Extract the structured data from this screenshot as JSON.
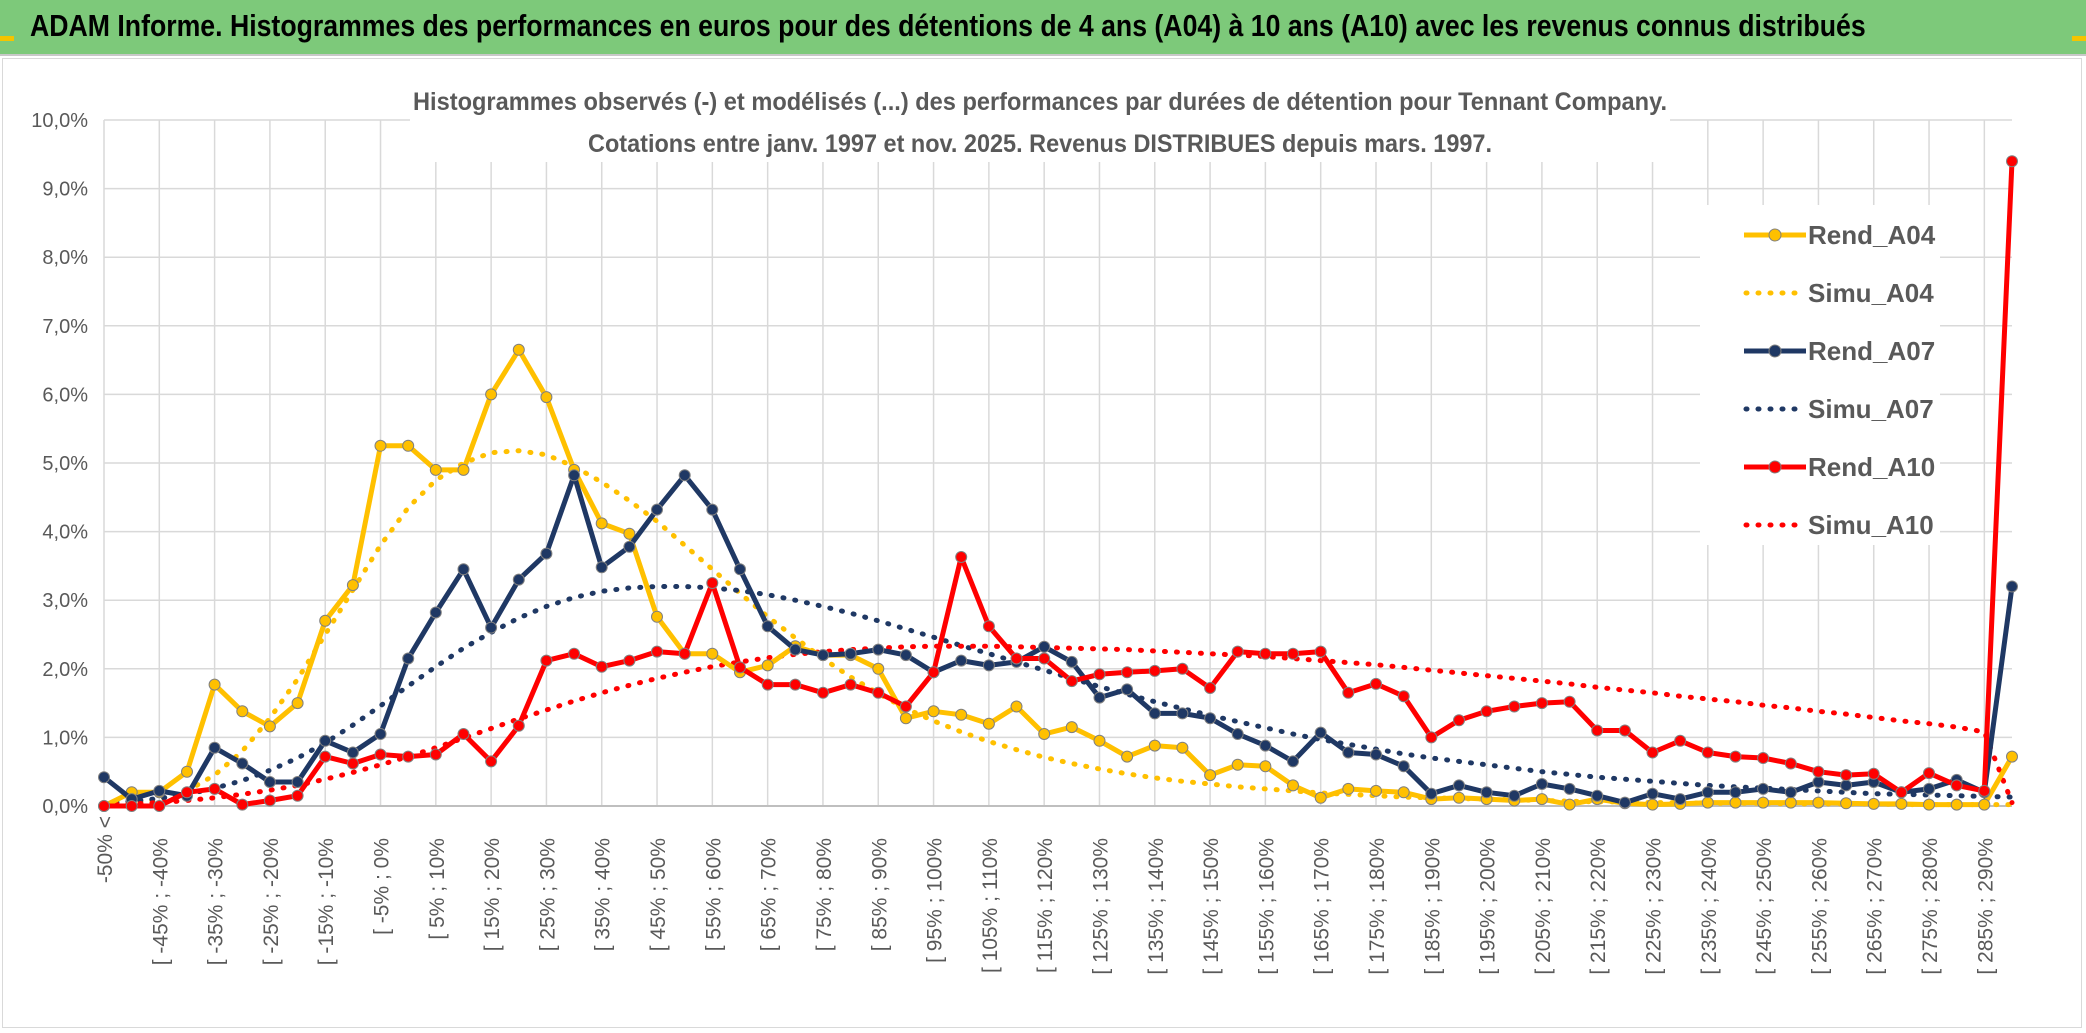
{
  "header": {
    "title": "ADAM Informe. Histogrammes des performances en euros pour des détentions de 4 ans (A04) à 10 ans (A10) avec les revenus connus distribués"
  },
  "colors": {
    "banner": "#7dc97a",
    "A04": "#ffc000",
    "A07": "#1f3864",
    "A10": "#ff0000",
    "grid": "#d9d9d9"
  },
  "chart_data": {
    "type": "line",
    "title": "Histogrammes observés (-) et modélisés (...) des performances par durées de détention pour Tennant Company.",
    "subtitle": "Cotations entre janv. 1997 et nov. 2025. Revenus DISTRIBUES depuis mars. 1997.",
    "ylim": [
      0,
      10
    ],
    "y_ticks": [
      "0,0%",
      "1,0%",
      "2,0%",
      "3,0%",
      "4,0%",
      "5,0%",
      "6,0%",
      "7,0%",
      "8,0%",
      "9,0%",
      "10,0%"
    ],
    "grid": true,
    "legend_position": "right",
    "x_tick_labels": [
      "-50% <",
      "[ -45% ; -40%",
      "[ -35% ; -30%",
      "[ -25% ; -20%",
      "[ -15% ; -10%",
      "[ -5% ; 0%",
      "[ 5% ; 10%",
      "[ 15% ; 20%",
      "[ 25% ; 30%",
      "[ 35% ; 40%",
      "[ 45% ; 50%",
      "[ 55% ; 60%",
      "[ 65% ; 70%",
      "[ 75% ; 80%",
      "[ 85% ; 90%",
      "[ 95% ; 100%",
      "[ 105% ; 110%",
      "[ 115% ; 120%",
      "[ 125% ; 130%",
      "[ 135% ; 140%",
      "[ 145% ; 150%",
      "[ 155% ; 160%",
      "[ 165% ; 170%",
      "[ 175% ; 180%",
      "[ 185% ; 190%",
      "[ 195% ; 200%",
      "[ 205% ; 210%",
      "[ 215% ; 220%",
      "[ 225% ; 230%",
      "[ 235% ; 240%",
      "[ 245% ; 250%",
      "[ 255% ; 260%",
      "[ 265% ; 270%",
      "[ 275% ; 280%",
      "[ 285% ; 290%"
    ],
    "x_count": 70,
    "series": [
      {
        "name": "Rend_A04",
        "style": "solid",
        "color": "#ffc000",
        "values": [
          0.0,
          0.2,
          0.2,
          0.5,
          1.77,
          1.38,
          1.16,
          1.5,
          2.7,
          3.22,
          5.25,
          5.25,
          4.9,
          4.9,
          6.0,
          6.65,
          5.96,
          4.9,
          4.12,
          3.97,
          2.76,
          2.22,
          2.22,
          1.95,
          2.05,
          2.33,
          2.2,
          2.2,
          2.0,
          1.28,
          1.38,
          1.33,
          1.2,
          1.45,
          1.05,
          1.15,
          0.95,
          0.72,
          0.88,
          0.85,
          0.45,
          0.6,
          0.58,
          0.3,
          0.12,
          0.25,
          0.22,
          0.2,
          0.1,
          0.12,
          0.1,
          0.08,
          0.1,
          0.02,
          0.1,
          0.04,
          0.02,
          0.03,
          0.05,
          0.05,
          0.05,
          0.05,
          0.05,
          0.04,
          0.03,
          0.03,
          0.02,
          0.02,
          0.02,
          0.72
        ]
      },
      {
        "name": "Simu_A04",
        "style": "dotted",
        "color": "#ffc000",
        "values": [
          0.02,
          0.04,
          0.1,
          0.22,
          0.45,
          0.8,
          1.28,
          1.85,
          2.5,
          3.15,
          3.8,
          4.35,
          4.75,
          5.0,
          5.15,
          5.18,
          5.12,
          4.95,
          4.72,
          4.45,
          4.15,
          3.8,
          3.45,
          3.1,
          2.76,
          2.45,
          2.15,
          1.88,
          1.64,
          1.42,
          1.24,
          1.08,
          0.94,
          0.82,
          0.71,
          0.62,
          0.54,
          0.47,
          0.41,
          0.36,
          0.32,
          0.28,
          0.25,
          0.22,
          0.19,
          0.17,
          0.15,
          0.13,
          0.12,
          0.11,
          0.1,
          0.09,
          0.08,
          0.07,
          0.06,
          0.06,
          0.05,
          0.05,
          0.04,
          0.04,
          0.04,
          0.03,
          0.03,
          0.03,
          0.03,
          0.02,
          0.02,
          0.02,
          0.02,
          0.02
        ]
      },
      {
        "name": "Rend_A07",
        "style": "solid",
        "color": "#1f3864",
        "values": [
          0.42,
          0.1,
          0.22,
          0.15,
          0.85,
          0.62,
          0.35,
          0.35,
          0.95,
          0.78,
          1.05,
          2.15,
          2.82,
          3.45,
          2.6,
          3.3,
          3.68,
          4.82,
          3.48,
          3.78,
          4.32,
          4.82,
          4.32,
          3.45,
          2.62,
          2.28,
          2.2,
          2.22,
          2.28,
          2.2,
          1.95,
          2.12,
          2.05,
          2.1,
          2.32,
          2.1,
          1.58,
          1.7,
          1.35,
          1.35,
          1.28,
          1.05,
          0.88,
          0.65,
          1.07,
          0.78,
          0.75,
          0.58,
          0.18,
          0.3,
          0.2,
          0.15,
          0.32,
          0.25,
          0.15,
          0.05,
          0.18,
          0.1,
          0.2,
          0.2,
          0.25,
          0.2,
          0.35,
          0.3,
          0.35,
          0.2,
          0.25,
          0.38,
          0.2,
          3.2
        ]
      },
      {
        "name": "Simu_A07",
        "style": "dotted",
        "color": "#1f3864",
        "values": [
          0.04,
          0.07,
          0.11,
          0.17,
          0.26,
          0.37,
          0.52,
          0.7,
          0.92,
          1.18,
          1.46,
          1.75,
          2.03,
          2.3,
          2.53,
          2.74,
          2.91,
          3.04,
          3.13,
          3.18,
          3.2,
          3.2,
          3.18,
          3.14,
          3.08,
          3.0,
          2.91,
          2.81,
          2.7,
          2.58,
          2.46,
          2.34,
          2.22,
          2.1,
          1.98,
          1.86,
          1.74,
          1.63,
          1.52,
          1.42,
          1.32,
          1.23,
          1.14,
          1.05,
          0.97,
          0.9,
          0.83,
          0.76,
          0.7,
          0.65,
          0.6,
          0.55,
          0.5,
          0.46,
          0.42,
          0.39,
          0.36,
          0.33,
          0.3,
          0.28,
          0.26,
          0.24,
          0.22,
          0.2,
          0.18,
          0.17,
          0.16,
          0.15,
          0.14,
          0.13
        ]
      },
      {
        "name": "Rend_A10",
        "style": "solid",
        "color": "#ff0000",
        "values": [
          0.0,
          0.0,
          0.0,
          0.2,
          0.25,
          0.02,
          0.08,
          0.15,
          0.72,
          0.62,
          0.75,
          0.72,
          0.75,
          1.05,
          0.65,
          1.17,
          2.12,
          2.22,
          2.03,
          2.12,
          2.25,
          2.22,
          3.25,
          2.02,
          1.77,
          1.77,
          1.65,
          1.77,
          1.65,
          1.45,
          1.95,
          3.63,
          2.62,
          2.15,
          2.15,
          1.82,
          1.92,
          1.95,
          1.97,
          2.0,
          1.72,
          2.25,
          2.22,
          2.22,
          2.25,
          1.65,
          1.78,
          1.6,
          1.0,
          1.25,
          1.38,
          1.45,
          1.5,
          1.52,
          1.1,
          1.1,
          0.78,
          0.95,
          0.78,
          0.72,
          0.7,
          0.62,
          0.5,
          0.45,
          0.47,
          0.2,
          0.48,
          0.3,
          0.22,
          9.4
        ]
      },
      {
        "name": "Simu_A10",
        "style": "dotted",
        "color": "#ff0000",
        "values": [
          0.02,
          0.03,
          0.05,
          0.08,
          0.12,
          0.17,
          0.23,
          0.3,
          0.39,
          0.49,
          0.6,
          0.72,
          0.85,
          0.99,
          1.13,
          1.27,
          1.4,
          1.53,
          1.65,
          1.76,
          1.86,
          1.95,
          2.03,
          2.1,
          2.16,
          2.21,
          2.25,
          2.28,
          2.3,
          2.32,
          2.33,
          2.33,
          2.33,
          2.32,
          2.31,
          2.3,
          2.29,
          2.28,
          2.26,
          2.24,
          2.22,
          2.2,
          2.18,
          2.15,
          2.12,
          2.09,
          2.06,
          2.02,
          1.98,
          1.94,
          1.9,
          1.86,
          1.82,
          1.78,
          1.73,
          1.69,
          1.65,
          1.6,
          1.56,
          1.52,
          1.47,
          1.43,
          1.38,
          1.34,
          1.29,
          1.24,
          1.2,
          1.15,
          1.08,
          0.05
        ]
      }
    ]
  }
}
